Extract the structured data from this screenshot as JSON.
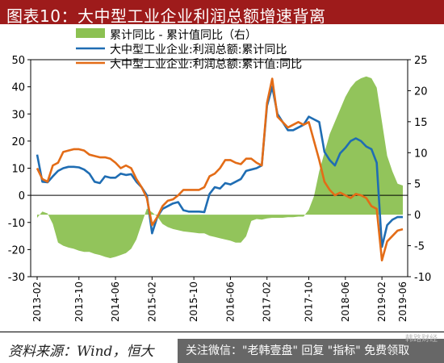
{
  "header": {
    "title": "图表10：大中型工业企业利润总额增速背离"
  },
  "footer": {
    "source": "资料来源：Wind，恒大",
    "watermark": "关注微信：\"老韩壹盘\" 回复 \"指标\" 免费领取",
    "watermark_logo": "韩路财经"
  },
  "chart_data": {
    "type": "area",
    "x": [
      "2013-02",
      "2013-03",
      "2013-04",
      "2013-05",
      "2013-06",
      "2013-07",
      "2013-08",
      "2013-09",
      "2013-10",
      "2013-11",
      "2013-12",
      "2014-02",
      "2014-03",
      "2014-04",
      "2014-05",
      "2014-06",
      "2014-07",
      "2014-08",
      "2014-09",
      "2014-10",
      "2014-11",
      "2014-12",
      "2015-02",
      "2015-03",
      "2015-04",
      "2015-05",
      "2015-06",
      "2015-07",
      "2015-08",
      "2015-09",
      "2015-10",
      "2015-11",
      "2015-12",
      "2016-02",
      "2016-03",
      "2016-04",
      "2016-05",
      "2016-06",
      "2016-07",
      "2016-08",
      "2016-09",
      "2016-10",
      "2016-11",
      "2016-12",
      "2017-02",
      "2017-03",
      "2017-04",
      "2017-05",
      "2017-06",
      "2017-07",
      "2017-08",
      "2017-09",
      "2017-10",
      "2017-11",
      "2017-12",
      "2018-02",
      "2018-03",
      "2018-04",
      "2018-05",
      "2018-06",
      "2018-07",
      "2018-08",
      "2018-09",
      "2018-10",
      "2018-11",
      "2018-12",
      "2019-02",
      "2019-03",
      "2019-04",
      "2019-05",
      "2019-06"
    ],
    "x_tick_labels": [
      "2013-02",
      "2013-10",
      "2014-06",
      "2015-02",
      "2015-10",
      "2016-06",
      "2017-02",
      "2017-10",
      "2018-06",
      "2019-02"
    ],
    "x_tick_labels_end": "2019-06",
    "left_axis": {
      "ylim": [
        -30,
        50
      ],
      "ticks": [
        -30,
        -20,
        -10,
        0,
        10,
        20,
        30,
        40,
        50
      ]
    },
    "right_axis": {
      "ylim": [
        -10,
        25
      ],
      "ticks": [
        -10,
        -5,
        0,
        5,
        10,
        15,
        20,
        25
      ]
    },
    "legend_position": "top",
    "series": [
      {
        "name": "累计同比 - 累计值同比（右）",
        "kind": "area",
        "axis": "right",
        "color": "#8cc152",
        "values": [
          -0.5,
          0.5,
          0.2,
          -1.5,
          -4.5,
          -5.0,
          -5.3,
          -5.5,
          -5.8,
          -6.0,
          -6.0,
          -6.3,
          -6.5,
          -6.8,
          -7.0,
          -6.8,
          -6.5,
          -6.2,
          -5.5,
          -4.0,
          -1.5,
          1.0,
          0.4,
          -0.3,
          -1.5,
          -2.0,
          -2.3,
          -2.5,
          -2.7,
          -2.8,
          -2.9,
          -3.0,
          -3.0,
          -3.4,
          -3.6,
          -3.8,
          -4.0,
          -4.2,
          -4.5,
          -4.5,
          -3.5,
          -1.0,
          -0.7,
          -0.8,
          -0.6,
          -0.5,
          -0.5,
          -0.5,
          -0.4,
          -0.4,
          -0.3,
          -0.3,
          0.8,
          3.0,
          7.0,
          10.0,
          13.0,
          15.0,
          17.0,
          19.0,
          20.5,
          21.5,
          22.0,
          22.3,
          22.0,
          20.5,
          15.0,
          9.5,
          7.0,
          5.0,
          4.7
        ]
      },
      {
        "name": "大中型工业企业:利润总额:累计同比",
        "kind": "line",
        "axis": "left",
        "color": "#1f6db3",
        "values": [
          15.0,
          5.0,
          4.8,
          7.0,
          9.0,
          10.0,
          10.5,
          10.5,
          10.3,
          9.5,
          8.0,
          5.0,
          4.5,
          7.0,
          6.5,
          6.5,
          8.0,
          7.5,
          7.8,
          5.0,
          3.0,
          0.0,
          -14.0,
          -8.0,
          -5.0,
          -4.0,
          -3.0,
          -2.5,
          -5.5,
          -6.0,
          -6.0,
          -6.0,
          -6.2,
          0.5,
          3.0,
          2.5,
          4.5,
          4.0,
          5.0,
          6.0,
          9.0,
          9.5,
          10.0,
          11.0,
          33.0,
          40.0,
          30.0,
          27.0,
          24.0,
          24.0,
          25.0,
          26.0,
          29.0,
          28.0,
          27.0,
          16.0,
          13.0,
          11.0,
          15.5,
          17.5,
          20.0,
          21.0,
          20.0,
          18.0,
          17.0,
          12.0,
          -19.0,
          -11.0,
          -9.0,
          -8.0,
          -8.0
        ]
      },
      {
        "name": "大中型工业企业:利润总额:累计值:同比",
        "kind": "line",
        "axis": "left",
        "color": "#e36c17",
        "values": [
          10.0,
          6.0,
          5.0,
          11.0,
          12.0,
          16.0,
          16.5,
          17.0,
          17.0,
          16.5,
          15.0,
          14.5,
          14.0,
          14.0,
          13.5,
          12.0,
          10.0,
          11.0,
          10.0,
          6.0,
          3.0,
          -1.0,
          -11.0,
          -8.0,
          -4.0,
          -2.0,
          -1.5,
          0.0,
          2.0,
          2.0,
          2.0,
          2.0,
          3.0,
          7.0,
          8.0,
          10.0,
          13.0,
          13.0,
          12.0,
          11.5,
          13.5,
          13.5,
          12.0,
          11.0,
          34.0,
          43.0,
          29.0,
          27.0,
          25.0,
          26.0,
          27.0,
          26.0,
          27.0,
          20.0,
          13.0,
          5.0,
          2.0,
          0.0,
          1.0,
          0.0,
          -1.0,
          0.5,
          0.0,
          -1.0,
          -4.0,
          -5.0,
          -24.0,
          -17.0,
          -15.0,
          -13.0,
          -12.5
        ]
      }
    ],
    "annotations": {
      "orange_extra": {
        "2018-03": 0,
        "2018-04": 0
      }
    }
  }
}
